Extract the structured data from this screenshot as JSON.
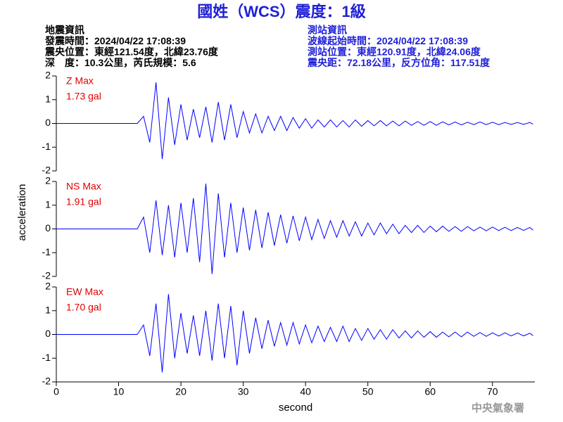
{
  "chart_data": {
    "type": "line",
    "title": "國姓（WCS）震度：1級",
    "info_left": [
      "地震資訊",
      "發震時間：2024/04/22 17:08:39",
      "震央位置：東經121.54度，北緯23.76度",
      "深　度：10.3公里，芮氏規模：5.6"
    ],
    "info_right": [
      "測站資訊",
      "波線起始時間：2024/04/22 17:08:39",
      "測站位置：東經120.91度，北緯24.06度",
      "震央距：72.18公里，反方位角：117.51度"
    ],
    "xlabel": "second",
    "ylabel": "acceleration",
    "credit": "中央氣象署",
    "xlim": [
      0,
      76.8
    ],
    "xticks": [
      0,
      10,
      20,
      30,
      40,
      50,
      60,
      70
    ],
    "ylim": [
      -2,
      2
    ],
    "yticks": [
      -2,
      -1,
      0,
      1,
      2
    ],
    "x": [
      0,
      13,
      14,
      15,
      16,
      17,
      18,
      19,
      20,
      21,
      22,
      23,
      24,
      25,
      26,
      27,
      28,
      29,
      30,
      31,
      32,
      33,
      34,
      35,
      36,
      37,
      38,
      39,
      40,
      41,
      42,
      43,
      44,
      45,
      46,
      47,
      48,
      49,
      50,
      51,
      52,
      53,
      54,
      55,
      56,
      57,
      58,
      59,
      60,
      61,
      62,
      63,
      64,
      65,
      66,
      67,
      68,
      69,
      70,
      71,
      72,
      73,
      74,
      75,
      76,
      76.5
    ],
    "series": [
      {
        "name": "Z Max",
        "color": "#0000ff",
        "peak": {
          "value": 1.73,
          "label": "1.73 gal"
        },
        "values": [
          0,
          0,
          0.3,
          -0.8,
          1.73,
          -1.5,
          1.1,
          -0.9,
          0.8,
          -0.7,
          0.6,
          -0.6,
          0.7,
          -0.8,
          0.9,
          -0.7,
          0.8,
          -0.6,
          0.5,
          -0.4,
          0.4,
          -0.4,
          0.3,
          -0.3,
          0.3,
          -0.3,
          0.25,
          -0.2,
          0.2,
          -0.2,
          0.15,
          -0.15,
          0.15,
          -0.15,
          0.12,
          -0.15,
          0.15,
          -0.12,
          0.12,
          -0.1,
          0.12,
          -0.1,
          0.1,
          -0.1,
          0.1,
          -0.08,
          0.08,
          -0.08,
          0.08,
          -0.08,
          0.07,
          -0.06,
          0.06,
          -0.06,
          0.05,
          -0.05,
          0.06,
          -0.05,
          0.05,
          -0.05,
          0.04,
          -0.04,
          0.04,
          -0.04,
          0.04,
          -0.03
        ]
      },
      {
        "name": "NS Max",
        "color": "#0000ff",
        "peak": {
          "value": 1.91,
          "label": "1.91 gal"
        },
        "values": [
          0,
          0,
          0.5,
          -1.0,
          1.2,
          -1.1,
          1.0,
          -1.2,
          1.1,
          -1.0,
          1.3,
          -1.4,
          1.91,
          -1.9,
          1.5,
          -1.2,
          1.1,
          -1.0,
          0.9,
          -0.9,
          0.8,
          -0.8,
          0.7,
          -0.7,
          0.6,
          -0.6,
          0.55,
          -0.5,
          0.5,
          -0.45,
          0.4,
          -0.4,
          0.35,
          -0.35,
          0.35,
          -0.3,
          0.3,
          -0.3,
          0.25,
          -0.25,
          0.25,
          -0.2,
          0.2,
          -0.2,
          0.15,
          -0.15,
          0.15,
          -0.15,
          0.12,
          -0.12,
          0.12,
          -0.1,
          0.1,
          -0.1,
          0.1,
          -0.08,
          0.08,
          -0.08,
          0.08,
          -0.07,
          0.07,
          -0.07,
          0.06,
          -0.06,
          0.06,
          -0.05
        ]
      },
      {
        "name": "EW Max",
        "color": "#0000ff",
        "peak": {
          "value": 1.7,
          "label": "1.70 gal"
        },
        "values": [
          0,
          0,
          0.4,
          -0.9,
          1.3,
          -1.6,
          1.7,
          -1.0,
          0.9,
          -0.8,
          0.8,
          -0.9,
          1.0,
          -1.1,
          1.3,
          -1.0,
          1.2,
          -1.3,
          1.0,
          -0.8,
          0.7,
          -0.6,
          0.6,
          -0.5,
          0.5,
          -0.45,
          0.5,
          -0.4,
          0.4,
          -0.35,
          0.35,
          -0.3,
          0.3,
          -0.3,
          0.35,
          -0.3,
          0.25,
          -0.25,
          0.25,
          -0.2,
          0.2,
          -0.2,
          0.2,
          -0.15,
          0.15,
          -0.15,
          0.15,
          -0.12,
          0.12,
          -0.12,
          0.1,
          -0.1,
          0.1,
          -0.1,
          0.1,
          -0.08,
          0.08,
          -0.08,
          0.07,
          -0.07,
          0.07,
          -0.06,
          0.06,
          -0.06,
          0.05,
          -0.05
        ]
      }
    ]
  }
}
